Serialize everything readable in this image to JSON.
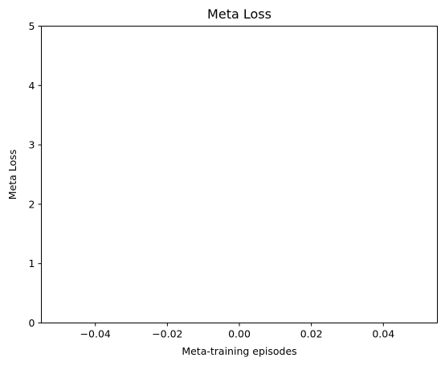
{
  "chart_data": {
    "type": "line",
    "title": "Meta Loss",
    "xlabel": "Meta-training episodes",
    "ylabel": "Meta Loss",
    "xlim": [
      -0.055,
      0.055
    ],
    "ylim": [
      0,
      5
    ],
    "xticks": [
      -0.04,
      -0.02,
      0.0,
      0.02,
      0.04
    ],
    "xtick_labels": [
      "−0.04",
      "−0.02",
      "0.00",
      "0.02",
      "0.04"
    ],
    "yticks": [
      0,
      1,
      2,
      3,
      4,
      5
    ],
    "ytick_labels": [
      "0",
      "1",
      "2",
      "3",
      "4",
      "5"
    ],
    "grid": false,
    "series": []
  }
}
